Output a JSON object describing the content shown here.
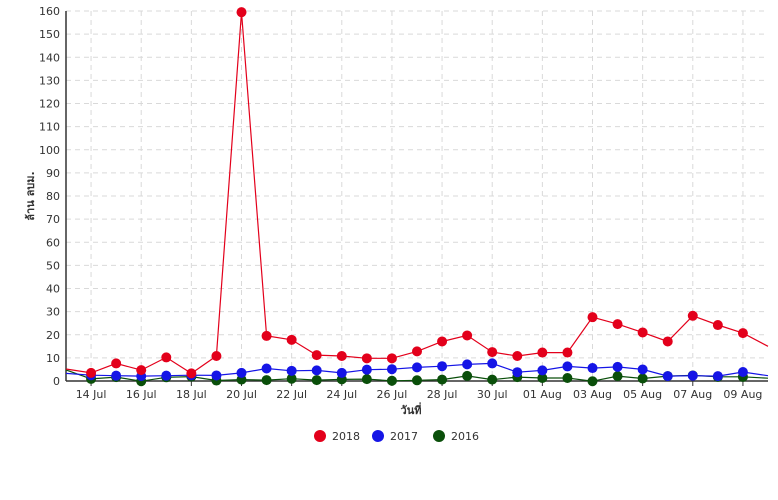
{
  "chart_data": {
    "type": "line",
    "title": "",
    "xlabel": "วันที่",
    "ylabel": "ล้าน ลบม.",
    "ylim": [
      0,
      160
    ],
    "yticks": [
      0,
      10,
      20,
      30,
      40,
      50,
      60,
      70,
      80,
      90,
      100,
      110,
      120,
      130,
      140,
      150,
      160
    ],
    "xlim": [
      "13 Jul",
      "10 Aug"
    ],
    "xtick_labels": [
      "14 Jul",
      "16 Jul",
      "18 Jul",
      "20 Jul",
      "22 Jul",
      "24 Jul",
      "26 Jul",
      "28 Jul",
      "30 Jul",
      "01 Aug",
      "03 Aug",
      "05 Aug",
      "07 Aug",
      "09 Aug"
    ],
    "x": [
      "13 Jul",
      "14 Jul",
      "15 Jul",
      "16 Jul",
      "17 Jul",
      "18 Jul",
      "19 Jul",
      "20 Jul",
      "21 Jul",
      "22 Jul",
      "23 Jul",
      "24 Jul",
      "25 Jul",
      "26 Jul",
      "27 Jul",
      "28 Jul",
      "29 Jul",
      "30 Jul",
      "31 Jul",
      "01 Aug",
      "02 Aug",
      "03 Aug",
      "04 Aug",
      "05 Aug",
      "06 Aug",
      "07 Aug",
      "08 Aug",
      "09 Aug",
      "10 Aug"
    ],
    "grid": true,
    "legend_position": "bottom-center",
    "series": [
      {
        "name": "2018",
        "color": "#e3001b",
        "values": [
          5.2,
          3.5,
          7.6,
          4.7,
          10.2,
          3.3,
          10.8,
          159.5,
          19.5,
          17.8,
          11.2,
          10.8,
          9.8,
          9.8,
          12.8,
          17.1,
          19.7,
          12.5,
          10.8,
          12.3,
          12.3,
          27.6,
          24.6,
          21,
          17.1,
          28.2,
          24.2,
          20.7,
          15
        ],
        "markers": [
          false,
          true,
          true,
          true,
          true,
          true,
          true,
          true,
          true,
          true,
          true,
          true,
          true,
          true,
          true,
          true,
          true,
          true,
          true,
          true,
          true,
          true,
          true,
          true,
          true,
          true,
          true,
          true,
          false
        ]
      },
      {
        "name": "2017",
        "color": "#1515e6",
        "values": [
          3.3,
          2.5,
          2.3,
          2.1,
          2.3,
          2.5,
          2.4,
          3.5,
          5.4,
          4.4,
          4.6,
          3.5,
          4.9,
          5.1,
          5.9,
          6.4,
          7.2,
          7.6,
          3.8,
          4.6,
          6.3,
          5.6,
          6.1,
          5,
          2.1,
          2.3,
          2.1,
          3.9,
          2.3
        ],
        "markers": [
          false,
          true,
          true,
          true,
          true,
          true,
          true,
          true,
          true,
          true,
          true,
          true,
          true,
          true,
          true,
          true,
          true,
          true,
          true,
          true,
          true,
          true,
          true,
          true,
          true,
          true,
          true,
          true,
          false
        ]
      },
      {
        "name": "2016",
        "color": "#0a4f0a",
        "values": [
          4.8,
          0.9,
          1.7,
          -0.1,
          1.6,
          1.9,
          0.2,
          0.6,
          0.4,
          1,
          0.4,
          0.7,
          0.8,
          0.1,
          0.3,
          0.6,
          2.2,
          0.6,
          1.7,
          1.3,
          1.3,
          -0.1,
          2.1,
          1.1,
          2.1,
          2.4,
          1.8,
          1.8,
          1.2
        ],
        "markers": [
          false,
          true,
          true,
          true,
          true,
          true,
          true,
          true,
          true,
          true,
          true,
          true,
          true,
          true,
          true,
          true,
          true,
          true,
          true,
          true,
          true,
          true,
          true,
          true,
          true,
          true,
          true,
          true,
          false
        ]
      }
    ]
  }
}
